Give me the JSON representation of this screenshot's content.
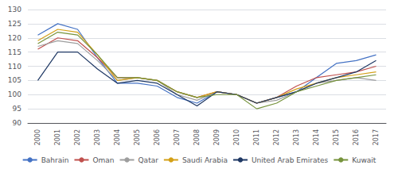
{
  "chart_data": {
    "type": "line",
    "categories": [
      "2000",
      "2001",
      "2002",
      "2003",
      "2004",
      "2005",
      "2006",
      "2007",
      "2008",
      "2009",
      "2010",
      "2011",
      "2012",
      "2013",
      "2014",
      "2015",
      "2016",
      "2017"
    ],
    "series": [
      {
        "name": "Bahrain",
        "color": "#4472c4",
        "values": [
          121,
          125,
          123,
          113,
          104,
          104,
          103,
          99,
          97,
          101,
          100,
          97,
          99,
          101,
          106,
          111,
          112,
          114
        ]
      },
      {
        "name": "Oman",
        "color": "#c0504d",
        "values": [
          116,
          120,
          119,
          113,
          106,
          106,
          105,
          101,
          99,
          101,
          100,
          97,
          99,
          103,
          106,
          107,
          108,
          110
        ]
      },
      {
        "name": "Qatar",
        "color": "#9e9e9e",
        "values": [
          117,
          119,
          118,
          112,
          105,
          106,
          105,
          100,
          98,
          101,
          100,
          97,
          98,
          101,
          104,
          105,
          106,
          105
        ]
      },
      {
        "name": "Saudi Arabia",
        "color": "#d4a017",
        "values": [
          119,
          123,
          122,
          114,
          105,
          106,
          105,
          101,
          99,
          101,
          100,
          97,
          99,
          102,
          104,
          106,
          107,
          108
        ]
      },
      {
        "name": "United Arab Emirates",
        "color": "#1f3864",
        "values": [
          105,
          115,
          115,
          109,
          104,
          105,
          104,
          100,
          96,
          101,
          100,
          97,
          99,
          101,
          104,
          106,
          108,
          112
        ]
      },
      {
        "name": "Kuwait",
        "color": "#76933c",
        "values": [
          118,
          122,
          121,
          114,
          106,
          106,
          105,
          101,
          99,
          100,
          100,
          95,
          97,
          101,
          103,
          105,
          106,
          107
        ]
      }
    ],
    "ylim": [
      90,
      130
    ],
    "yticks": [
      90,
      95,
      100,
      105,
      110,
      115,
      120,
      125,
      130
    ],
    "grid": true,
    "legend": "bottom"
  }
}
